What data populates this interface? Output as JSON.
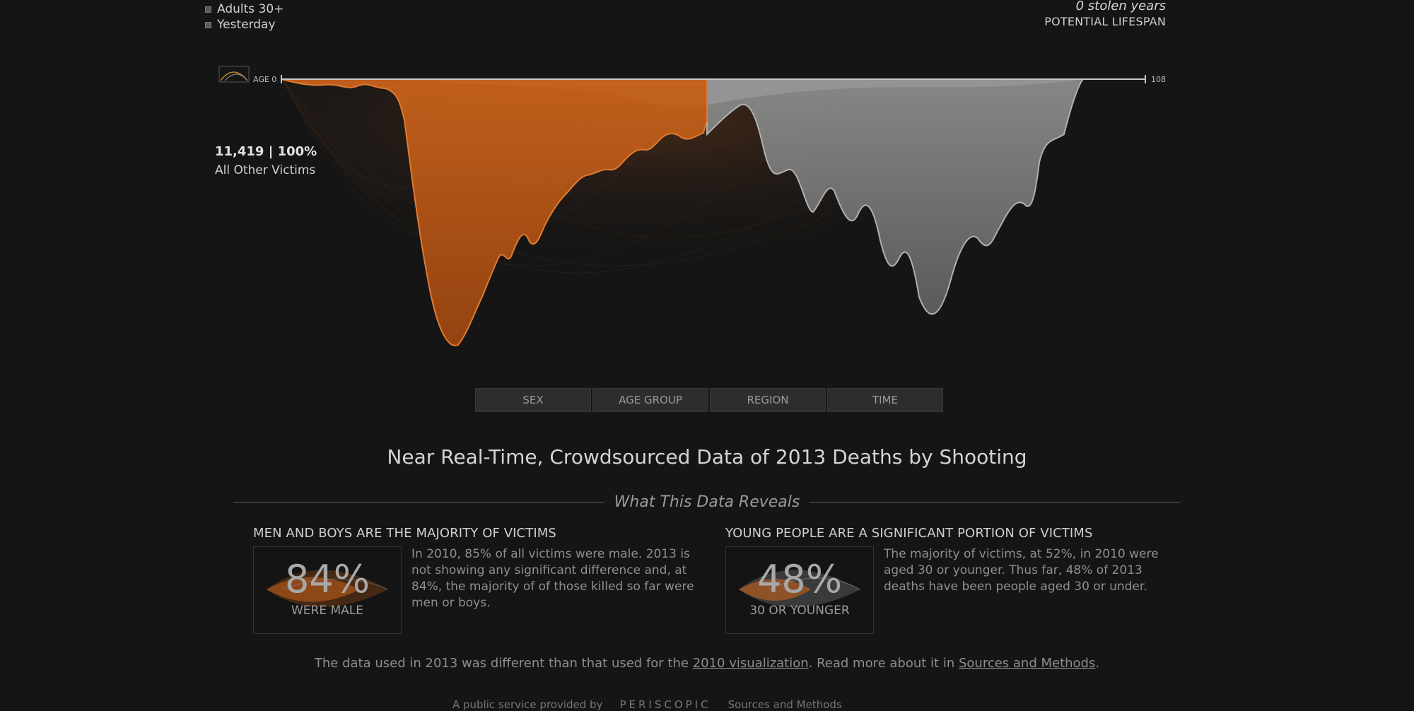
{
  "filters": {
    "items": [
      {
        "label": "Adults 30+"
      },
      {
        "label": "Yesterday"
      }
    ]
  },
  "stolen": {
    "years": "0 stolen years",
    "label": "POTENTIAL LIFESPAN"
  },
  "axis": {
    "start_label": "AGE 0",
    "end_label": "108"
  },
  "stat": {
    "count": "11,419 | 100%",
    "label": "All Other Victims"
  },
  "tabs": [
    {
      "label": "SEX"
    },
    {
      "label": "AGE GROUP"
    },
    {
      "label": "REGION"
    },
    {
      "label": "TIME"
    }
  ],
  "headline": "Near Real-Time, Crowdsourced Data of 2013 Deaths by Shooting",
  "section_title": "What This Data Reveals",
  "insights": [
    {
      "title": "MEN AND BOYS ARE THE MAJORITY OF VICTIMS",
      "big": "84%",
      "sub": "WERE MALE",
      "text": "In 2010, 85% of all victims were male. 2013 is not showing any significant difference and, at 84%, the majority of of those killed so far were men or boys."
    },
    {
      "title": "YOUNG PEOPLE ARE A SIGNIFICANT PORTION OF VICTIMS",
      "big": "48%",
      "sub": "30 OR YOUNGER",
      "text": "The majority of victims, at 52%, in 2010 were aged 30 or younger. Thus far, 48% of 2013 deaths have been people aged 30 or under."
    }
  ],
  "note": {
    "before": "The data used in 2013 was different than that used for the ",
    "link1": "2010 visualization",
    "middle": ". Read more about it in ",
    "link2": "Sources and Methods",
    "after": "."
  },
  "footer": {
    "provided": "A public service provided by",
    "brand": "PERISCOPIC",
    "sources": "Sources and Methods"
  },
  "colors": {
    "accent": "#c8621c",
    "grey": "#8a8a8a"
  }
}
